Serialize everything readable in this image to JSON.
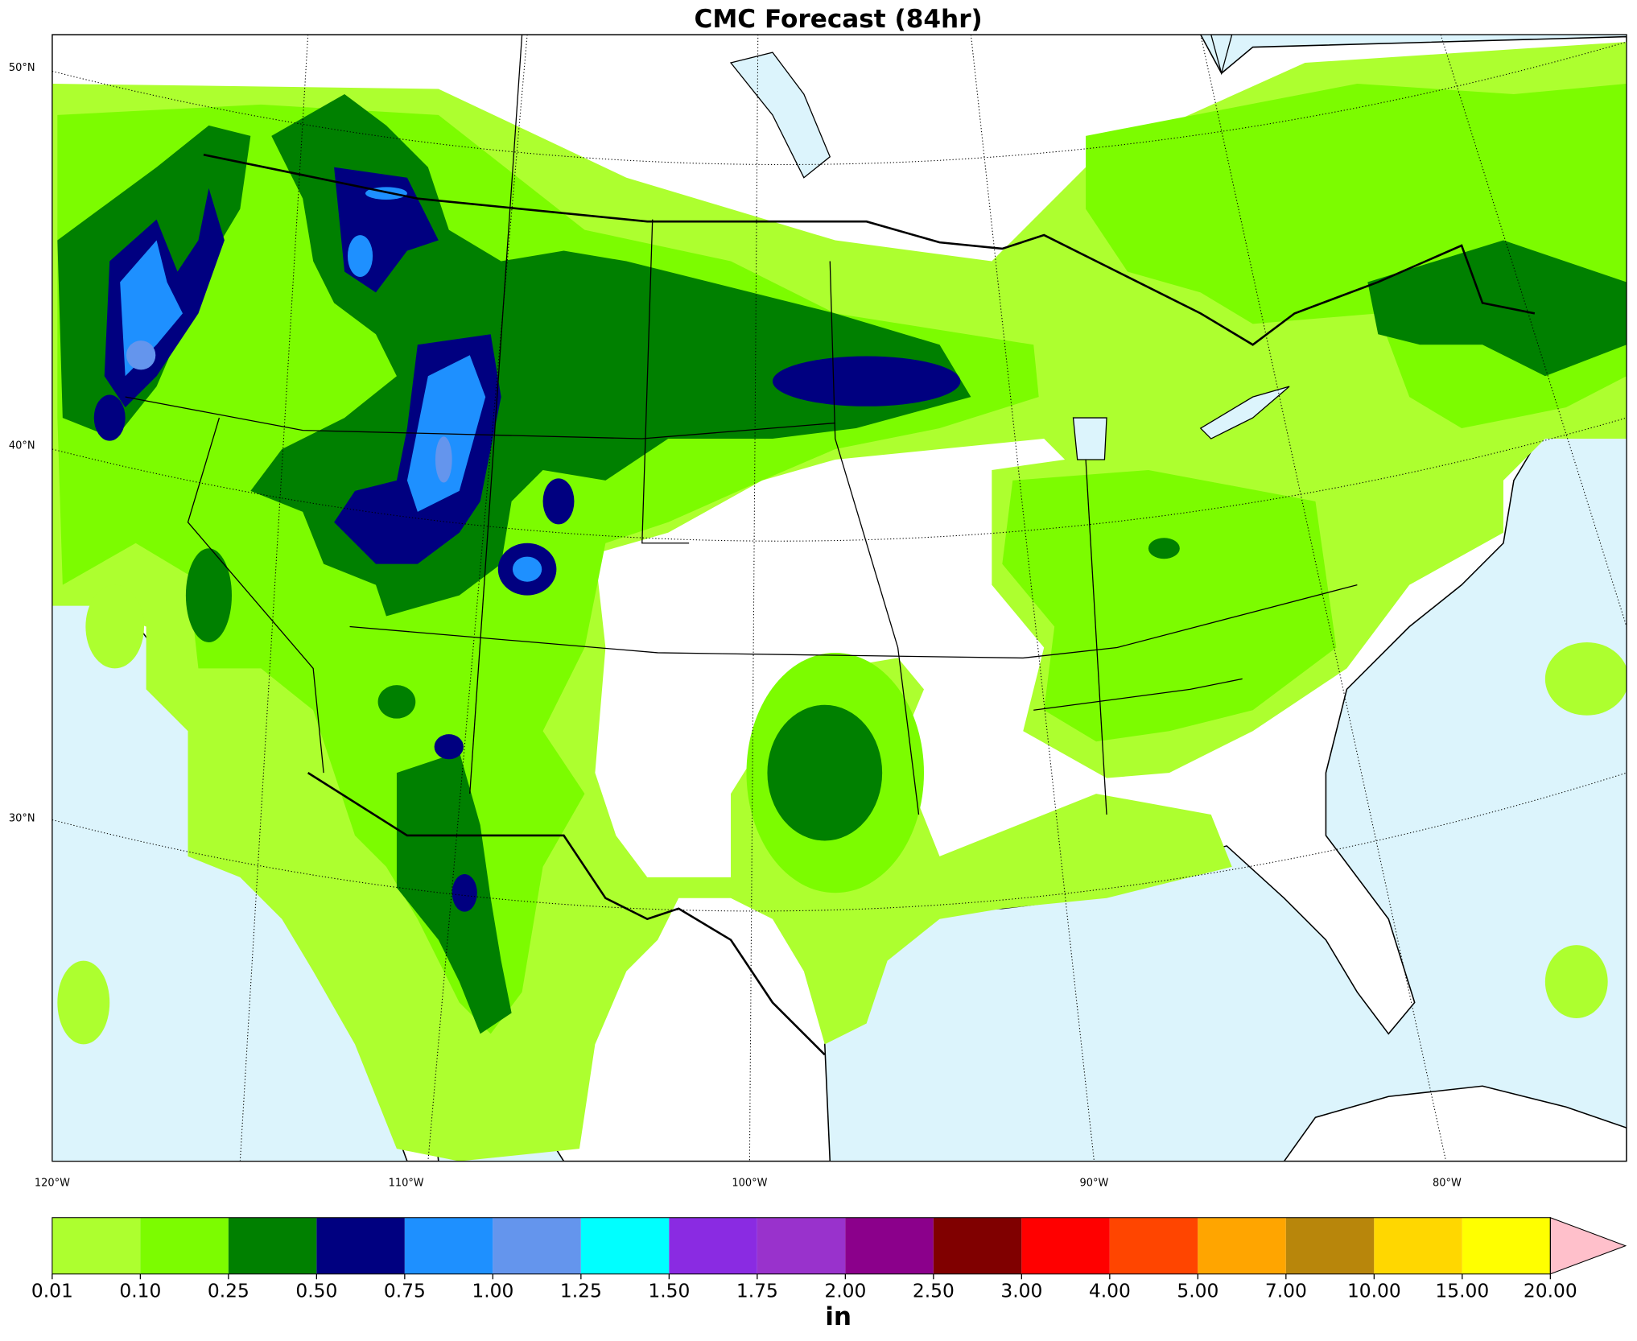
{
  "title": "CMC Forecast (84hr)",
  "lat_labels": [
    "50°N",
    "40°N",
    "30°N"
  ],
  "lon_labels": [
    "120°W",
    "110°W",
    "100°W",
    "90°W",
    "80°W"
  ],
  "colorbar": {
    "unit": "in",
    "colors": [
      "#adff2f",
      "#7cfc00",
      "#008000",
      "#000080",
      "#1e90ff",
      "#6495ed",
      "#00ffff",
      "#8a2be2",
      "#9932cc",
      "#8b008b",
      "#800000",
      "#ff0000",
      "#ff4500",
      "#ffa500",
      "#b8860b",
      "#ffd700",
      "#ffff00"
    ],
    "extend_color": "#ffc0cb",
    "ticks": [
      {
        "value": 0.01,
        "label": "0.01"
      },
      {
        "value": 0.1,
        "label": "0.10"
      },
      {
        "value": 0.25,
        "label": "0.25"
      },
      {
        "value": 0.5,
        "label": "0.50"
      },
      {
        "value": 0.75,
        "label": "0.75"
      },
      {
        "value": 1,
        "label": "1.00"
      },
      {
        "value": 1.25,
        "label": "1.25"
      },
      {
        "value": 1.5,
        "label": "1.50"
      },
      {
        "value": 1.75,
        "label": "1.75"
      },
      {
        "value": 2,
        "label": "2.00"
      },
      {
        "value": 2.5,
        "label": "2.50"
      },
      {
        "value": 3,
        "label": "3.00"
      },
      {
        "value": 4,
        "label": "4.00"
      },
      {
        "value": 5,
        "label": "5.00"
      },
      {
        "value": 7,
        "label": "7.00"
      },
      {
        "value": 10,
        "label": "10.00"
      },
      {
        "value": 15,
        "label": "15.00"
      },
      {
        "value": 20,
        "label": "20.00"
      }
    ]
  }
}
